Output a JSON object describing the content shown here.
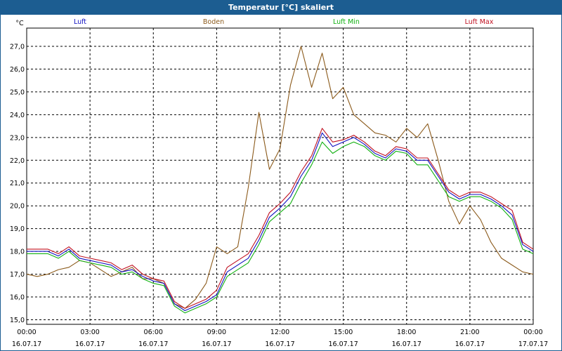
{
  "window": {
    "title": "Temperatur [°C] skaliert"
  },
  "chart_data": {
    "type": "line",
    "title": "Temperatur [°C] skaliert",
    "ylabel": "°C",
    "xlabel": "",
    "ylim": [
      14.8,
      27.8
    ],
    "xlim": [
      0,
      24
    ],
    "grid": true,
    "yticks": [
      "15,0",
      "16,0",
      "17,0",
      "18,0",
      "19,0",
      "20,0",
      "21,0",
      "22,0",
      "23,0",
      "24,0",
      "25,0",
      "26,0",
      "27,0"
    ],
    "xticks": [
      {
        "time": "00:00",
        "date": "16.07.17"
      },
      {
        "time": "03:00",
        "date": "16.07.17"
      },
      {
        "time": "06:00",
        "date": "16.07.17"
      },
      {
        "time": "09:00",
        "date": "16.07.17"
      },
      {
        "time": "12:00",
        "date": "16.07.17"
      },
      {
        "time": "15:00",
        "date": "16.07.17"
      },
      {
        "time": "18:00",
        "date": "16.07.17"
      },
      {
        "time": "21:00",
        "date": "16.07.17"
      },
      {
        "time": "00:00",
        "date": "17.07.17"
      }
    ],
    "x_unit": "hours since 16.07.17 00:00",
    "series": [
      {
        "name": "Luft",
        "color": "#1010c0",
        "x": [
          0,
          0.5,
          1,
          1.5,
          2,
          2.5,
          3,
          3.5,
          4,
          4.5,
          5,
          5.5,
          6,
          6.5,
          7,
          7.5,
          8,
          8.5,
          9,
          9.5,
          10,
          10.5,
          11,
          11.5,
          12,
          12.5,
          13,
          13.5,
          14,
          14.5,
          15,
          15.5,
          16,
          16.5,
          17,
          17.5,
          18,
          18.5,
          19,
          19.5,
          20,
          20.5,
          21,
          21.5,
          22,
          22.5,
          23,
          23.5,
          24
        ],
        "values": [
          18.0,
          18.0,
          18.0,
          17.8,
          18.1,
          17.7,
          17.6,
          17.5,
          17.4,
          17.1,
          17.2,
          16.9,
          16.7,
          16.6,
          15.7,
          15.4,
          15.6,
          15.8,
          16.1,
          17.1,
          17.4,
          17.7,
          18.5,
          19.5,
          19.9,
          20.4,
          21.3,
          22.0,
          23.2,
          22.6,
          22.8,
          23.0,
          22.7,
          22.3,
          22.1,
          22.5,
          22.4,
          22.0,
          22.0,
          21.3,
          20.6,
          20.3,
          20.5,
          20.5,
          20.3,
          20.0,
          19.6,
          18.3,
          18.0
        ]
      },
      {
        "name": "Boden",
        "color": "#8b5a1b",
        "x": [
          0,
          0.5,
          1,
          1.5,
          2,
          2.5,
          3,
          3.5,
          4,
          4.5,
          5,
          5.5,
          6,
          6.5,
          7,
          7.5,
          8,
          8.5,
          9,
          9.5,
          10,
          10.5,
          11,
          11.5,
          12,
          12.5,
          13,
          13.5,
          14,
          14.5,
          15,
          15.5,
          16,
          16.5,
          17,
          17.5,
          18,
          18.5,
          19,
          19.5,
          20,
          20.5,
          21,
          21.5,
          22,
          22.5,
          23,
          23.5,
          24
        ],
        "values": [
          17.0,
          16.9,
          17.0,
          17.2,
          17.3,
          17.6,
          17.5,
          17.2,
          16.9,
          17.1,
          17.3,
          16.8,
          16.8,
          16.6,
          15.7,
          15.5,
          15.9,
          16.6,
          18.2,
          17.9,
          18.2,
          20.8,
          24.1,
          21.6,
          22.5,
          25.3,
          27.0,
          25.2,
          26.7,
          24.7,
          25.2,
          24.0,
          23.6,
          23.2,
          23.1,
          22.8,
          23.4,
          23.0,
          23.6,
          22.0,
          20.2,
          19.2,
          20.0,
          19.4,
          18.4,
          17.7,
          17.4,
          17.1,
          17.0
        ]
      },
      {
        "name": "Luft Min",
        "color": "#10b010",
        "x": [
          0,
          0.5,
          1,
          1.5,
          2,
          2.5,
          3,
          3.5,
          4,
          4.5,
          5,
          5.5,
          6,
          6.5,
          7,
          7.5,
          8,
          8.5,
          9,
          9.5,
          10,
          10.5,
          11,
          11.5,
          12,
          12.5,
          13,
          13.5,
          14,
          14.5,
          15,
          15.5,
          16,
          16.5,
          17,
          17.5,
          18,
          18.5,
          19,
          19.5,
          20,
          20.5,
          21,
          21.5,
          22,
          22.5,
          23,
          23.5,
          24
        ],
        "values": [
          17.9,
          17.9,
          17.9,
          17.7,
          18.0,
          17.6,
          17.5,
          17.4,
          17.3,
          17.0,
          17.1,
          16.8,
          16.6,
          16.5,
          15.6,
          15.3,
          15.5,
          15.7,
          16.0,
          16.9,
          17.2,
          17.5,
          18.3,
          19.3,
          19.7,
          20.1,
          21.0,
          21.8,
          22.8,
          22.3,
          22.6,
          22.8,
          22.6,
          22.2,
          22.0,
          22.4,
          22.3,
          21.8,
          21.8,
          21.1,
          20.4,
          20.2,
          20.4,
          20.4,
          20.2,
          19.9,
          19.4,
          18.1,
          17.9
        ]
      },
      {
        "name": "Luft Max",
        "color": "#c01020",
        "x": [
          0,
          0.5,
          1,
          1.5,
          2,
          2.5,
          3,
          3.5,
          4,
          4.5,
          5,
          5.5,
          6,
          6.5,
          7,
          7.5,
          8,
          8.5,
          9,
          9.5,
          10,
          10.5,
          11,
          11.5,
          12,
          12.5,
          13,
          13.5,
          14,
          14.5,
          15,
          15.5,
          16,
          16.5,
          17,
          17.5,
          18,
          18.5,
          19,
          19.5,
          20,
          20.5,
          21,
          21.5,
          22,
          22.5,
          23,
          23.5,
          24
        ],
        "values": [
          18.1,
          18.1,
          18.1,
          17.9,
          18.2,
          17.8,
          17.7,
          17.6,
          17.5,
          17.2,
          17.4,
          17.0,
          16.8,
          16.7,
          15.8,
          15.5,
          15.7,
          15.9,
          16.3,
          17.3,
          17.6,
          17.9,
          18.7,
          19.7,
          20.1,
          20.6,
          21.5,
          22.2,
          23.4,
          22.8,
          22.9,
          23.1,
          22.8,
          22.4,
          22.2,
          22.6,
          22.5,
          22.1,
          22.1,
          21.4,
          20.7,
          20.4,
          20.6,
          20.6,
          20.4,
          20.1,
          19.8,
          18.4,
          18.1
        ]
      }
    ]
  }
}
